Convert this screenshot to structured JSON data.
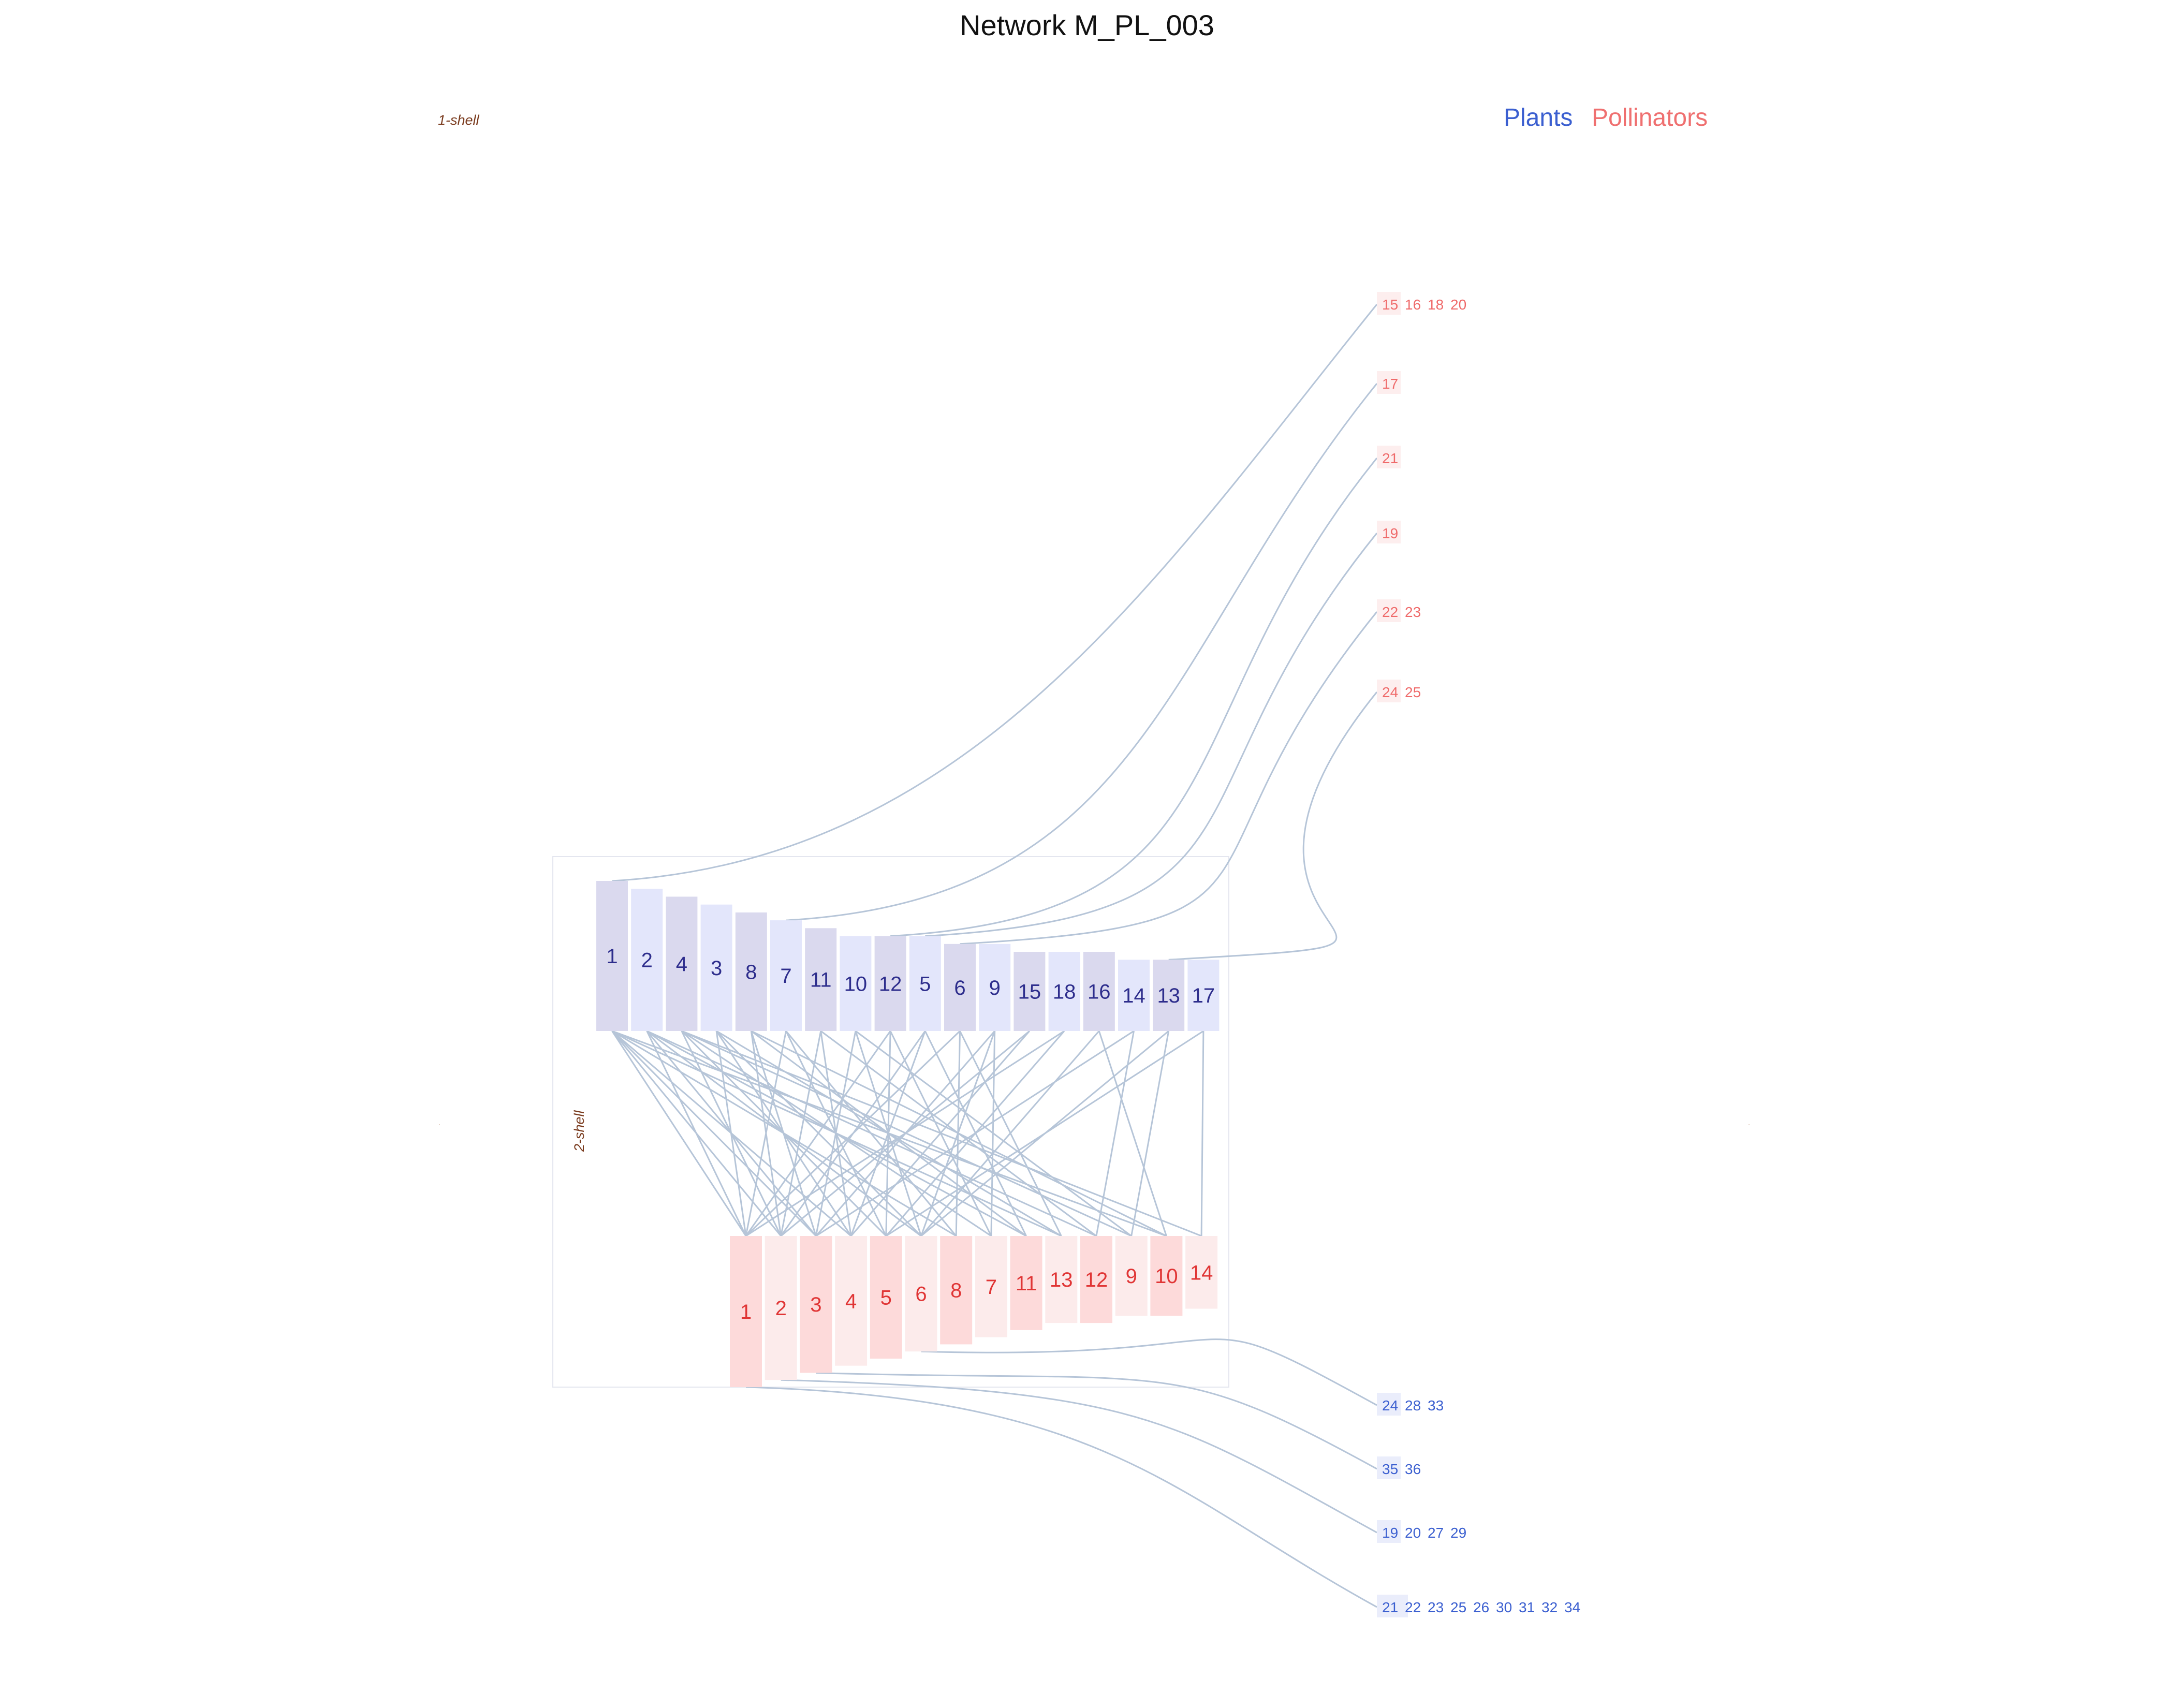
{
  "title": "Network M_PL_003",
  "legend": {
    "plants": "Plants",
    "pollinators": "Pollinators"
  },
  "shell_labels": {
    "outer": "1-shell",
    "inner": "2-shell"
  },
  "colors": {
    "plant_dark": "#dad9ee",
    "plant_light": "#e3e6fb",
    "poll_dark": "#fddada",
    "poll_light": "#fcebeb",
    "link": "#b6c5d8",
    "plants_text": "#3b5fd0",
    "poll_text": "#ef7070"
  },
  "plant_nodes": [
    {
      "label": "1",
      "degree": 12,
      "shade": "dark"
    },
    {
      "label": "2",
      "degree": 11,
      "shade": "light"
    },
    {
      "label": "4",
      "degree": 10,
      "shade": "dark"
    },
    {
      "label": "3",
      "degree": 9,
      "shade": "light"
    },
    {
      "label": "8",
      "degree": 8,
      "shade": "dark"
    },
    {
      "label": "7",
      "degree": 7,
      "shade": "light"
    },
    {
      "label": "11",
      "degree": 6,
      "shade": "dark"
    },
    {
      "label": "10",
      "degree": 5,
      "shade": "light"
    },
    {
      "label": "12",
      "degree": 5,
      "shade": "dark"
    },
    {
      "label": "5",
      "degree": 5,
      "shade": "light"
    },
    {
      "label": "6",
      "degree": 4,
      "shade": "dark"
    },
    {
      "label": "9",
      "degree": 4,
      "shade": "light"
    },
    {
      "label": "15",
      "degree": 3,
      "shade": "dark"
    },
    {
      "label": "18",
      "degree": 3,
      "shade": "light"
    },
    {
      "label": "16",
      "degree": 3,
      "shade": "dark"
    },
    {
      "label": "14",
      "degree": 2,
      "shade": "light"
    },
    {
      "label": "13",
      "degree": 2,
      "shade": "dark"
    },
    {
      "label": "17",
      "degree": 2,
      "shade": "light"
    }
  ],
  "pollinator_nodes": [
    {
      "label": "1",
      "degree": 14,
      "shade": "dark"
    },
    {
      "label": "2",
      "degree": 13,
      "shade": "light"
    },
    {
      "label": "3",
      "degree": 12,
      "shade": "dark"
    },
    {
      "label": "4",
      "degree": 11,
      "shade": "light"
    },
    {
      "label": "5",
      "degree": 10,
      "shade": "dark"
    },
    {
      "label": "6",
      "degree": 9,
      "shade": "light"
    },
    {
      "label": "8",
      "degree": 8,
      "shade": "dark"
    },
    {
      "label": "7",
      "degree": 7,
      "shade": "light"
    },
    {
      "label": "11",
      "degree": 6,
      "shade": "dark"
    },
    {
      "label": "13",
      "degree": 5,
      "shade": "light"
    },
    {
      "label": "12",
      "degree": 5,
      "shade": "dark"
    },
    {
      "label": "9",
      "degree": 4,
      "shade": "light"
    },
    {
      "label": "10",
      "degree": 4,
      "shade": "dark"
    },
    {
      "label": "14",
      "degree": 3,
      "shade": "light"
    }
  ],
  "links": [
    [
      "1",
      "1"
    ],
    [
      "1",
      "2"
    ],
    [
      "1",
      "3"
    ],
    [
      "1",
      "4"
    ],
    [
      "1",
      "8"
    ],
    [
      "1",
      "10"
    ],
    [
      "1",
      "13"
    ],
    [
      "2",
      "1"
    ],
    [
      "2",
      "3"
    ],
    [
      "2",
      "6"
    ],
    [
      "2",
      "11"
    ],
    [
      "2",
      "12"
    ],
    [
      "4",
      "2"
    ],
    [
      "4",
      "5"
    ],
    [
      "4",
      "7"
    ],
    [
      "4",
      "9"
    ],
    [
      "4",
      "14"
    ],
    [
      "3",
      "1"
    ],
    [
      "3",
      "4"
    ],
    [
      "3",
      "6"
    ],
    [
      "3",
      "13"
    ],
    [
      "8",
      "2"
    ],
    [
      "8",
      "3"
    ],
    [
      "8",
      "11"
    ],
    [
      "8",
      "10"
    ],
    [
      "7",
      "1"
    ],
    [
      "7",
      "5"
    ],
    [
      "7",
      "8"
    ],
    [
      "11",
      "2"
    ],
    [
      "11",
      "4"
    ],
    [
      "11",
      "12"
    ],
    [
      "10",
      "3"
    ],
    [
      "10",
      "6"
    ],
    [
      "10",
      "9"
    ],
    [
      "12",
      "1"
    ],
    [
      "12",
      "5"
    ],
    [
      "12",
      "7"
    ],
    [
      "5",
      "2"
    ],
    [
      "5",
      "4"
    ],
    [
      "5",
      "11"
    ],
    [
      "6",
      "1"
    ],
    [
      "6",
      "8"
    ],
    [
      "6",
      "13"
    ],
    [
      "9",
      "3"
    ],
    [
      "9",
      "6"
    ],
    [
      "9",
      "7"
    ],
    [
      "15",
      "4"
    ],
    [
      "15",
      "2"
    ],
    [
      "18",
      "1"
    ],
    [
      "18",
      "5"
    ],
    [
      "16",
      "6"
    ],
    [
      "16",
      "10"
    ],
    [
      "14",
      "3"
    ],
    [
      "14",
      "12"
    ],
    [
      "13",
      "6"
    ],
    [
      "13",
      "9"
    ],
    [
      "17",
      "5"
    ],
    [
      "17",
      "14"
    ]
  ],
  "tail_links_top": [
    {
      "from": "1",
      "row": 0
    },
    {
      "from": "7",
      "row": 1
    },
    {
      "from": "12",
      "row": 2
    },
    {
      "from": "5",
      "row": 3
    },
    {
      "from": "6",
      "row": 4
    },
    {
      "from": "13",
      "row": 5
    }
  ],
  "tail_links_bottom": [
    {
      "from": "6",
      "row": 0
    },
    {
      "from": "3",
      "row": 1
    },
    {
      "from": "2",
      "row": 2
    },
    {
      "from": "1",
      "row": 3
    }
  ],
  "pollinator_tails": [
    {
      "labels": [
        "15",
        "16",
        "18",
        "20"
      ]
    },
    {
      "labels": [
        "17"
      ]
    },
    {
      "labels": [
        "21"
      ]
    },
    {
      "labels": [
        "19"
      ]
    },
    {
      "labels": [
        "22",
        "23"
      ]
    },
    {
      "labels": [
        "24",
        "25"
      ]
    }
  ],
  "plant_tails": [
    {
      "labels": [
        "24",
        "28",
        "33"
      ]
    },
    {
      "labels": [
        "35",
        "36"
      ]
    },
    {
      "labels": [
        "19",
        "20",
        "27",
        "29"
      ]
    },
    {
      "labels": [
        "21",
        "22",
        "23",
        "25",
        "26",
        "30",
        "31",
        "32",
        "34"
      ]
    }
  ]
}
